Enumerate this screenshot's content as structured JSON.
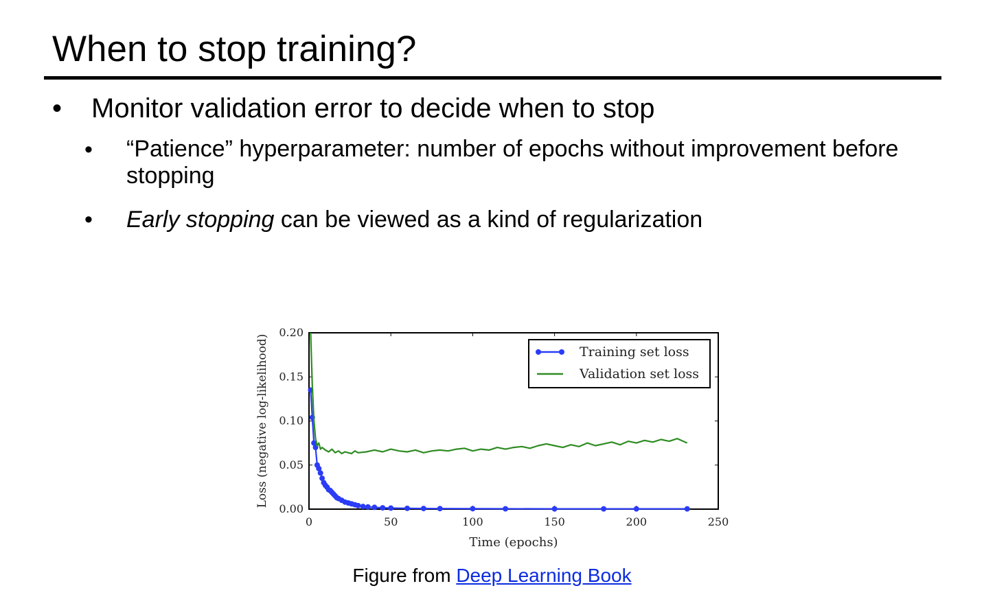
{
  "slide": {
    "title": "When to stop training?",
    "bullet_main": "Monitor validation error to decide when to stop",
    "sub_bullet_1": "“Patience” hyperparameter: number of epochs without improvement before stopping",
    "sub_bullet_2_italic": "Early stopping",
    "sub_bullet_2_rest": " can be viewed as a kind of regularization",
    "bullet_glyph": "•",
    "caption_prefix": "Figure from ",
    "caption_link": "Deep Learning Book",
    "link_color": "#0b2be0"
  },
  "chart_data": {
    "type": "line",
    "xlabel": "Time (epochs)",
    "ylabel": "Loss (negative log-likelihood)",
    "xlim": [
      0,
      250
    ],
    "ylim": [
      0.0,
      0.2
    ],
    "x_ticks": [
      "0",
      "50",
      "100",
      "150",
      "200",
      "250"
    ],
    "y_ticks": [
      "0.00",
      "0.05",
      "0.10",
      "0.15",
      "0.20"
    ],
    "legend_position": "top-right",
    "grid": false,
    "series": [
      {
        "name": "Training set loss",
        "color": "#2a3cf5",
        "marker": "circle",
        "x": [
          1,
          2,
          3,
          4,
          5,
          6,
          7,
          8,
          9,
          10,
          11,
          12,
          13,
          14,
          15,
          16,
          17,
          18,
          20,
          22,
          24,
          26,
          28,
          30,
          33,
          36,
          40,
          45,
          50,
          60,
          70,
          80,
          100,
          120,
          150,
          180,
          200,
          231
        ],
        "values": [
          0.135,
          0.104,
          0.075,
          0.07,
          0.05,
          0.046,
          0.041,
          0.035,
          0.03,
          0.027,
          0.025,
          0.022,
          0.021,
          0.019,
          0.017,
          0.015,
          0.013,
          0.012,
          0.01,
          0.008,
          0.007,
          0.006,
          0.005,
          0.004,
          0.003,
          0.0025,
          0.002,
          0.0015,
          0.0012,
          0.0009,
          0.0007,
          0.0006,
          0.0005,
          0.0004,
          0.0003,
          0.0003,
          0.0003,
          0.0003
        ]
      },
      {
        "name": "Validation set loss",
        "color": "#2e8b22",
        "marker": "none",
        "x": [
          1,
          2,
          3,
          4,
          5,
          6,
          7,
          8,
          10,
          12,
          14,
          16,
          18,
          20,
          22,
          24,
          26,
          28,
          30,
          35,
          40,
          45,
          50,
          55,
          60,
          65,
          70,
          75,
          80,
          85,
          90,
          95,
          100,
          105,
          110,
          115,
          120,
          125,
          130,
          135,
          140,
          145,
          150,
          155,
          160,
          165,
          170,
          175,
          180,
          185,
          190,
          195,
          200,
          205,
          210,
          215,
          220,
          225,
          231
        ],
        "values": [
          0.2,
          0.14,
          0.1,
          0.08,
          0.072,
          0.075,
          0.068,
          0.07,
          0.067,
          0.065,
          0.068,
          0.064,
          0.066,
          0.063,
          0.065,
          0.064,
          0.063,
          0.066,
          0.064,
          0.065,
          0.067,
          0.065,
          0.068,
          0.066,
          0.065,
          0.067,
          0.064,
          0.066,
          0.067,
          0.066,
          0.068,
          0.069,
          0.066,
          0.068,
          0.067,
          0.07,
          0.068,
          0.07,
          0.071,
          0.069,
          0.072,
          0.074,
          0.072,
          0.07,
          0.073,
          0.071,
          0.075,
          0.072,
          0.074,
          0.076,
          0.073,
          0.077,
          0.075,
          0.078,
          0.076,
          0.079,
          0.077,
          0.08,
          0.075
        ]
      }
    ]
  }
}
